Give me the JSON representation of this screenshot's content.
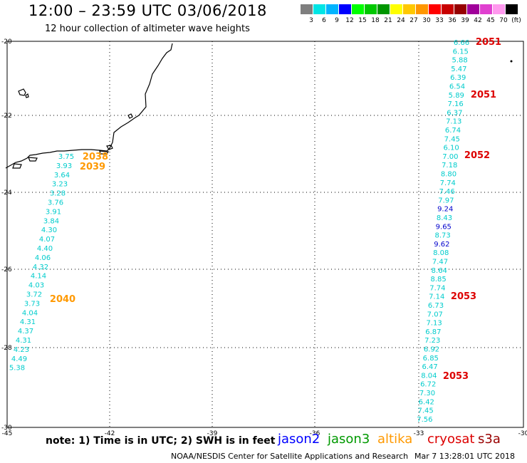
{
  "header": {
    "title": "12:00 – 23:59 UTC 03/06/2018",
    "subtitle": "12 hour collection of altimeter wave heights"
  },
  "color_scale": {
    "colors": [
      "#7f7f7f",
      "#00e5e5",
      "#00b4ff",
      "#0000ff",
      "#00ff00",
      "#00c800",
      "#009600",
      "#ffff00",
      "#ffc800",
      "#ff9600",
      "#ff0000",
      "#c80000",
      "#960000",
      "#a0009a",
      "#e040d0",
      "#ff99ee",
      "#000000"
    ],
    "labels": [
      "3",
      "6",
      "9",
      "12",
      "15",
      "18",
      "21",
      "24",
      "27",
      "30",
      "33",
      "36",
      "39",
      "42",
      "45",
      "70",
      "(ft)"
    ]
  },
  "map": {
    "lat_labels": [
      "-20",
      "-22",
      "-24",
      "-26",
      "-28",
      "-30"
    ],
    "lon_labels": [
      "-45",
      "-42",
      "-39",
      "-36",
      "-33",
      "-30"
    ],
    "cyan_color": "#00cccc",
    "dark_blue_color": "#0000cc",
    "track_west": {
      "values": [
        "3.75",
        "3.93",
        "3.64",
        "3.23",
        "3.28",
        "3.76",
        "3.91",
        "3.84",
        "4.30",
        "4.07",
        "4.40",
        "4.06",
        "4.32",
        "4.14",
        "4.03",
        "3.72",
        "3.73",
        "4.04",
        "4.31",
        "4.37",
        "4.31",
        "4.23",
        "4.49",
        "5.38"
      ]
    },
    "track_east": {
      "values": [
        "6.66",
        "6.15",
        "5.88",
        "5.47",
        "6.39",
        "6.54",
        "5.89",
        "7.16",
        "6.37",
        "7.13",
        "6.74",
        "7.45",
        "6.10",
        "7.00",
        "7.18",
        "8.80",
        "7.74",
        "7.46",
        "7.97",
        "9.24",
        "8.43",
        "9.65",
        "8.73",
        "9.62",
        "8.08",
        "7.47",
        "8.64",
        "8.85",
        "7.74",
        "7.14",
        "6.73",
        "7.07",
        "7.13",
        "6.87",
        "7.23",
        "6.92",
        "6.85",
        "6.47",
        "8.04",
        "6.72",
        "7.30",
        "6.42",
        "7.45",
        "7.56"
      ],
      "dark_blue_values": [
        "9.24",
        "9.65",
        "9.62"
      ]
    },
    "time_labels": [
      {
        "text": "2038",
        "color": "#ff9900"
      },
      {
        "text": "2039",
        "color": "#ff9900"
      },
      {
        "text": "2040",
        "color": "#ff9900"
      },
      {
        "text": "2051",
        "color": "#dd0000"
      },
      {
        "text": "2051",
        "color": "#dd0000"
      },
      {
        "text": "2052",
        "color": "#dd0000"
      },
      {
        "text": "2053",
        "color": "#dd0000"
      },
      {
        "text": "2053",
        "color": "#dd0000"
      }
    ]
  },
  "note": "note: 1) Time is in UTC; 2) SWH is in feet",
  "legend": [
    {
      "name": "jason2",
      "color": "#0000ff"
    },
    {
      "name": "jason3",
      "color": "#009900"
    },
    {
      "name": "altika",
      "color": "#ff9900"
    },
    {
      "name": "cryosat",
      "color": "#dd0000"
    },
    {
      "name": "s3a",
      "color": "#990000"
    }
  ],
  "footer": {
    "credit": "NOAA/NESDIS Center for Satellite Applications and Research",
    "timestamp": "Mar  7 13:28:01 UTC 2018"
  }
}
